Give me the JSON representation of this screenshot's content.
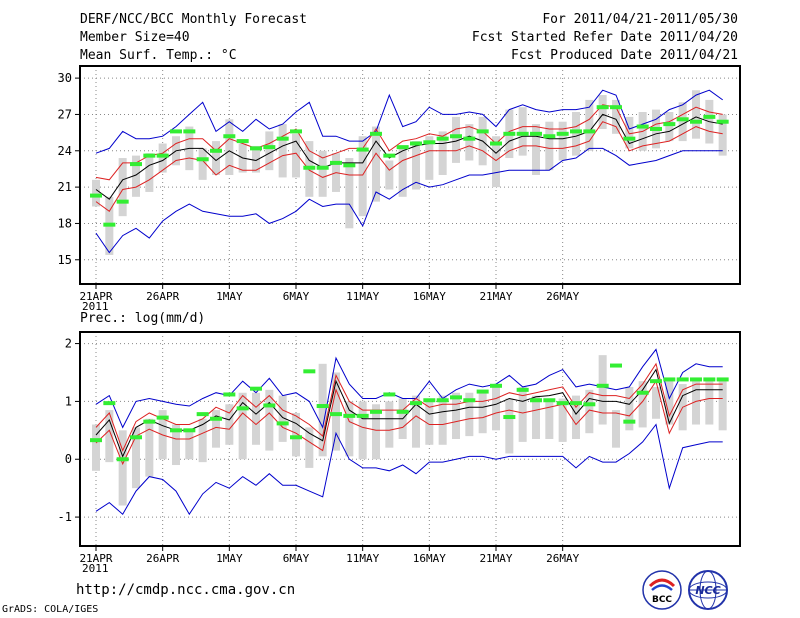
{
  "header": {
    "title": "DERF/NCC/BCC Monthly Forecast",
    "member_size": "Member Size=40",
    "variable": "Mean Surf. Temp.: °C",
    "period": "For 2011/04/21-2011/05/30",
    "started": "Fcst Started Refer Date 2011/04/20",
    "produced": "Fcst Produced Date 2011/04/21"
  },
  "footer": {
    "url": "http://cmdp.ncc.cma.gov.cn",
    "grads": "GrADS: COLA/IGES",
    "logo1_text": "BCC",
    "logo2_text": "NCC"
  },
  "colors": {
    "max_min": "#0000cc",
    "spread": "#dd2222",
    "mean": "#000000",
    "box": "#d4d4d4",
    "obs_mark": "#33ee33",
    "grid": "#888888"
  },
  "chart_data": [
    {
      "type": "line",
      "title": "Mean Surf. Temp.: °C",
      "x_ticks": [
        "21APR",
        "26APR",
        "1MAY",
        "6MAY",
        "11MAY",
        "16MAY",
        "21MAY",
        "26MAY"
      ],
      "x_year": "2011",
      "ylim": [
        13,
        31
      ],
      "yticks": [
        15,
        18,
        21,
        24,
        27,
        30
      ],
      "series": [
        {
          "name": "max",
          "values": [
            23.8,
            24.2,
            25.6,
            25.0,
            25.0,
            25.2,
            26.0,
            27.0,
            28.0,
            25.6,
            26.4,
            25.6,
            26.6,
            25.8,
            26.2,
            27.2,
            28.0,
            25.2,
            25.2,
            24.8,
            24.8,
            25.6,
            28.6,
            26.0,
            26.4,
            27.6,
            27.0,
            27.0,
            27.2,
            27.0,
            26.0,
            27.4,
            27.8,
            27.4,
            27.2,
            27.4,
            27.4,
            27.6,
            29.0,
            28.6,
            25.8,
            26.2,
            26.6,
            27.4,
            27.8,
            28.6,
            29.0,
            28.2
          ]
        },
        {
          "name": "spread_upper",
          "values": [
            21.8,
            21.6,
            23.0,
            23.0,
            23.6,
            23.8,
            24.6,
            25.0,
            25.0,
            24.0,
            25.0,
            24.6,
            24.2,
            24.6,
            25.2,
            25.8,
            24.0,
            23.4,
            23.8,
            24.2,
            24.2,
            25.8,
            24.0,
            24.8,
            25.0,
            25.4,
            25.2,
            25.8,
            26.0,
            25.6,
            24.6,
            25.6,
            26.0,
            26.0,
            25.8,
            25.8,
            26.0,
            26.6,
            27.8,
            27.6,
            25.4,
            25.6,
            26.2,
            26.4,
            27.0,
            27.6,
            27.2,
            27.0
          ]
        },
        {
          "name": "mean",
          "values": [
            20.8,
            20.0,
            21.6,
            22.0,
            22.8,
            23.2,
            24.0,
            24.2,
            24.2,
            23.2,
            24.0,
            23.4,
            23.2,
            23.8,
            24.4,
            24.8,
            23.2,
            22.6,
            23.0,
            23.0,
            23.0,
            24.8,
            23.4,
            24.0,
            24.4,
            24.6,
            24.6,
            24.8,
            25.2,
            24.8,
            23.8,
            24.8,
            25.2,
            25.2,
            25.0,
            25.0,
            25.2,
            25.6,
            27.0,
            26.6,
            24.6,
            25.0,
            25.4,
            25.6,
            26.2,
            26.8,
            26.4,
            26.2
          ]
        },
        {
          "name": "spread_lower",
          "values": [
            19.8,
            19.0,
            20.8,
            21.0,
            21.6,
            22.4,
            23.2,
            23.4,
            23.2,
            22.0,
            22.8,
            22.4,
            22.4,
            23.0,
            23.6,
            23.8,
            22.4,
            21.8,
            22.2,
            22.0,
            22.0,
            23.8,
            22.4,
            23.2,
            23.6,
            24.0,
            24.0,
            24.0,
            24.4,
            24.0,
            23.2,
            24.0,
            24.4,
            24.4,
            24.2,
            24.2,
            24.4,
            24.8,
            26.4,
            26.0,
            24.0,
            24.4,
            24.6,
            24.8,
            25.4,
            26.0,
            25.6,
            25.4
          ]
        },
        {
          "name": "min",
          "values": [
            17.2,
            15.6,
            17.0,
            17.6,
            16.8,
            18.2,
            19.0,
            19.6,
            19.0,
            18.8,
            18.6,
            18.6,
            18.8,
            18.0,
            18.4,
            19.0,
            20.0,
            19.4,
            19.6,
            19.6,
            17.8,
            20.6,
            20.0,
            20.8,
            21.4,
            21.0,
            21.2,
            21.6,
            22.0,
            22.0,
            22.2,
            22.4,
            22.4,
            22.4,
            22.4,
            23.2,
            23.4,
            24.2,
            24.2,
            23.6,
            22.8,
            23.0,
            23.2,
            23.6,
            24.0,
            24.0,
            24.0,
            24.0
          ]
        },
        {
          "name": "obs_marks",
          "values": [
            20.3,
            17.9,
            19.8,
            22.9,
            23.6,
            23.6,
            25.6,
            25.6,
            23.3,
            24.0,
            25.2,
            24.8,
            24.2,
            24.3,
            25.0,
            25.6,
            22.6,
            22.6,
            23.0,
            22.8,
            24.1,
            25.4,
            23.6,
            24.3,
            24.6,
            24.7,
            25.0,
            25.2,
            25.0,
            25.6,
            24.6,
            25.4,
            25.4,
            25.4,
            25.2,
            25.4,
            25.6,
            25.6,
            27.6,
            27.6,
            25.0,
            26.0,
            25.8,
            26.2,
            26.6,
            26.4,
            26.8,
            26.4
          ]
        }
      ],
      "boxes": [
        [
          19.4,
          21.6
        ],
        [
          15.4,
          20.2
        ],
        [
          18.6,
          23.4
        ],
        [
          20.2,
          23.6
        ],
        [
          20.6,
          23.8
        ],
        [
          22.2,
          24.6
        ],
        [
          22.8,
          25.2
        ],
        [
          22.4,
          26.0
        ],
        [
          21.6,
          24.2
        ],
        [
          22.0,
          24.8
        ],
        [
          22.0,
          26.6
        ],
        [
          22.2,
          24.6
        ],
        [
          22.2,
          24.4
        ],
        [
          22.4,
          25.6
        ],
        [
          21.8,
          26.2
        ],
        [
          21.8,
          25.4
        ],
        [
          20.2,
          24.8
        ],
        [
          20.2,
          24.0
        ],
        [
          20.6,
          23.8
        ],
        [
          17.6,
          23.4
        ],
        [
          18.6,
          25.2
        ],
        [
          19.8,
          26.0
        ],
        [
          20.8,
          23.2
        ],
        [
          20.2,
          24.2
        ],
        [
          20.8,
          24.8
        ],
        [
          21.6,
          25.2
        ],
        [
          22.0,
          25.6
        ],
        [
          23.0,
          26.8
        ],
        [
          23.2,
          26.2
        ],
        [
          22.8,
          26.8
        ],
        [
          21.0,
          25.2
        ],
        [
          23.4,
          27.4
        ],
        [
          23.6,
          27.6
        ],
        [
          22.0,
          26.2
        ],
        [
          22.4,
          26.4
        ],
        [
          23.2,
          26.4
        ],
        [
          23.6,
          27.2
        ],
        [
          24.0,
          28.2
        ],
        [
          25.8,
          28.6
        ],
        [
          25.4,
          28.2
        ],
        [
          24.2,
          26.8
        ],
        [
          24.0,
          27.2
        ],
        [
          24.2,
          27.4
        ],
        [
          24.8,
          27.2
        ],
        [
          24.8,
          28.0
        ],
        [
          25.0,
          29.0
        ],
        [
          24.6,
          28.2
        ],
        [
          23.6,
          27.0
        ]
      ]
    },
    {
      "type": "line",
      "title": "Prec.: log(mm/d)",
      "x_ticks": [
        "21APR",
        "26APR",
        "1MAY",
        "6MAY",
        "11MAY",
        "16MAY",
        "21MAY",
        "26MAY"
      ],
      "x_year": "2011",
      "ylim": [
        -1.5,
        2.2
      ],
      "yticks": [
        -1,
        0,
        1,
        2
      ],
      "series": [
        {
          "name": "max",
          "values": [
            0.95,
            1.1,
            0.55,
            1.0,
            1.05,
            1.0,
            0.95,
            0.92,
            1.05,
            1.15,
            1.1,
            1.35,
            1.15,
            1.4,
            1.1,
            1.15,
            1.0,
            0.55,
            1.75,
            1.3,
            1.05,
            1.05,
            1.15,
            1.05,
            1.05,
            1.35,
            1.05,
            1.2,
            1.3,
            1.25,
            1.3,
            1.45,
            1.25,
            1.3,
            1.45,
            1.55,
            1.25,
            1.3,
            1.25,
            1.2,
            1.25,
            1.6,
            1.9,
            1.05,
            1.5,
            1.65,
            1.6,
            1.6
          ]
        },
        {
          "name": "spread_upper",
          "values": [
            0.55,
            0.8,
            0.15,
            0.65,
            0.8,
            0.7,
            0.6,
            0.6,
            0.7,
            0.9,
            0.8,
            1.1,
            0.9,
            1.1,
            0.85,
            0.75,
            0.6,
            0.4,
            1.45,
            1.0,
            0.85,
            0.85,
            0.85,
            0.85,
            1.05,
            0.9,
            0.95,
            0.95,
            1.0,
            1.0,
            1.05,
            1.15,
            1.1,
            1.15,
            1.2,
            1.25,
            0.9,
            1.15,
            1.1,
            1.1,
            1.05,
            1.3,
            1.65,
            0.75,
            1.2,
            1.3,
            1.3,
            1.3
          ]
        },
        {
          "name": "mean",
          "values": [
            0.42,
            0.68,
            0.05,
            0.55,
            0.68,
            0.58,
            0.5,
            0.5,
            0.6,
            0.75,
            0.68,
            0.98,
            0.78,
            0.98,
            0.72,
            0.62,
            0.45,
            0.32,
            1.35,
            0.85,
            0.7,
            0.7,
            0.7,
            0.7,
            0.95,
            0.78,
            0.82,
            0.85,
            0.9,
            0.9,
            0.95,
            1.05,
            1.0,
            1.08,
            1.1,
            1.15,
            0.78,
            1.05,
            1.0,
            1.0,
            0.95,
            1.2,
            1.55,
            0.62,
            1.1,
            1.2,
            1.2,
            1.2
          ]
        },
        {
          "name": "spread_lower",
          "values": [
            0.28,
            0.5,
            -0.08,
            0.4,
            0.52,
            0.42,
            0.35,
            0.35,
            0.45,
            0.55,
            0.52,
            0.8,
            0.6,
            0.8,
            0.55,
            0.45,
            0.3,
            0.15,
            1.2,
            0.65,
            0.55,
            0.5,
            0.5,
            0.55,
            0.75,
            0.6,
            0.6,
            0.65,
            0.7,
            0.72,
            0.8,
            0.85,
            0.8,
            0.85,
            0.9,
            0.95,
            0.6,
            0.85,
            0.8,
            0.8,
            0.75,
            1.0,
            1.35,
            0.45,
            0.9,
            1.0,
            1.05,
            1.05
          ]
        },
        {
          "name": "min",
          "values": [
            -0.9,
            -0.75,
            -0.95,
            -0.55,
            -0.3,
            -0.35,
            -0.55,
            -0.95,
            -0.6,
            -0.4,
            -0.5,
            -0.3,
            -0.45,
            -0.25,
            -0.45,
            -0.45,
            -0.55,
            -0.65,
            0.45,
            0.0,
            -0.15,
            -0.15,
            -0.2,
            -0.1,
            -0.25,
            -0.05,
            -0.05,
            0.0,
            0.05,
            0.05,
            0.0,
            0.05,
            0.05,
            0.05,
            0.05,
            0.05,
            -0.15,
            0.05,
            -0.05,
            -0.05,
            0.1,
            0.3,
            0.6,
            -0.5,
            0.2,
            0.25,
            0.3,
            0.3
          ]
        },
        {
          "name": "obs_marks",
          "values": [
            0.33,
            0.97,
            0.0,
            0.38,
            0.65,
            0.72,
            0.5,
            0.5,
            0.78,
            0.7,
            1.12,
            0.88,
            1.22,
            0.93,
            0.62,
            0.38,
            1.52,
            0.92,
            0.78,
            0.75,
            0.75,
            0.82,
            1.12,
            0.82,
            0.97,
            1.02,
            1.02,
            1.07,
            1.02,
            1.17,
            1.27,
            0.73,
            1.2,
            1.02,
            1.02,
            0.97,
            0.97,
            0.95,
            1.27,
            1.62,
            0.65,
            1.15,
            1.35,
            1.38,
            1.38,
            1.38,
            1.38,
            1.38
          ]
        }
      ],
      "boxes": [
        [
          -0.2,
          0.6
        ],
        [
          -0.05,
          0.85
        ],
        [
          -0.8,
          0.5
        ],
        [
          -0.5,
          0.55
        ],
        [
          -0.3,
          0.7
        ],
        [
          0.0,
          0.85
        ],
        [
          -0.1,
          0.6
        ],
        [
          0.0,
          0.5
        ],
        [
          -0.05,
          0.7
        ],
        [
          0.2,
          0.85
        ],
        [
          0.25,
          0.95
        ],
        [
          0.0,
          1.15
        ],
        [
          0.25,
          1.15
        ],
        [
          0.15,
          1.2
        ],
        [
          0.3,
          1.1
        ],
        [
          0.05,
          0.8
        ],
        [
          -0.15,
          0.55
        ],
        [
          0.05,
          1.65
        ],
        [
          0.15,
          1.5
        ],
        [
          0.05,
          1.0
        ],
        [
          0.0,
          1.0
        ],
        [
          0.0,
          0.95
        ],
        [
          0.2,
          1.0
        ],
        [
          0.35,
          1.05
        ],
        [
          0.2,
          1.1
        ],
        [
          0.25,
          1.05
        ],
        [
          0.25,
          1.1
        ],
        [
          0.35,
          1.15
        ],
        [
          0.4,
          1.15
        ],
        [
          0.45,
          1.15
        ],
        [
          0.5,
          1.3
        ],
        [
          0.1,
          1.05
        ],
        [
          0.3,
          1.25
        ],
        [
          0.35,
          1.1
        ],
        [
          0.35,
          1.05
        ],
        [
          0.3,
          1.05
        ],
        [
          0.35,
          1.1
        ],
        [
          0.45,
          1.2
        ],
        [
          0.6,
          1.8
        ],
        [
          0.2,
          0.85
        ],
        [
          0.5,
          1.25
        ],
        [
          0.55,
          1.35
        ],
        [
          0.7,
          1.25
        ],
        [
          0.6,
          1.35
        ],
        [
          0.5,
          1.3
        ],
        [
          0.6,
          1.35
        ],
        [
          0.6,
          1.4
        ],
        [
          0.5,
          1.4
        ]
      ]
    }
  ]
}
